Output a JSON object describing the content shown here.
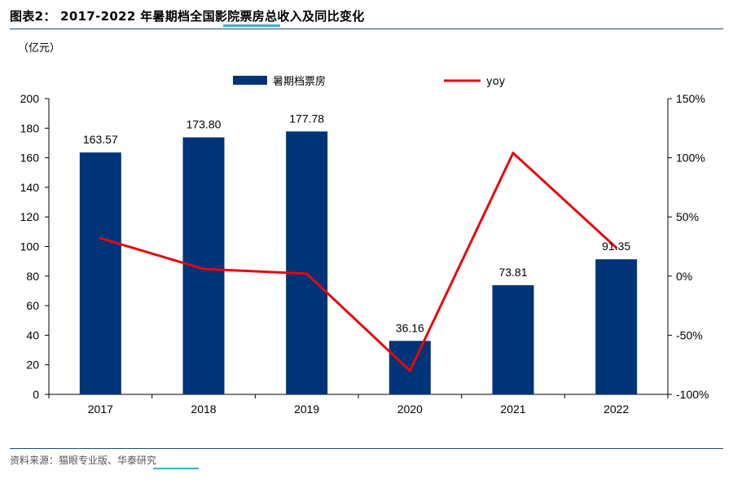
{
  "figure": {
    "title": "图表2： 2017-2022 年暑期档全国影院票房总收入及同比变化",
    "unit": "（亿元）",
    "source": "资料来源：猫眼专业版、华泰研究"
  },
  "colors": {
    "bar": "#003478",
    "line": "#e8070e",
    "rule": "#1f4e79",
    "accent": "#35b3c7"
  },
  "chart_data": {
    "type": "bar",
    "categories": [
      "2017",
      "2018",
      "2019",
      "2020",
      "2021",
      "2022"
    ],
    "series": [
      {
        "name": "暑期档票房",
        "type": "bar",
        "axis": "left",
        "values": [
          163.57,
          173.8,
          177.78,
          36.16,
          73.81,
          91.35
        ],
        "labels": [
          "163.57",
          "173.80",
          "177.78",
          "36.16",
          "73.81",
          "91.35"
        ]
      },
      {
        "name": "yoy",
        "type": "line",
        "axis": "right",
        "values": [
          32,
          6,
          2,
          -80,
          104,
          24
        ]
      }
    ],
    "y_left": {
      "range": [
        0,
        200
      ],
      "ticks": [
        "0",
        "20",
        "40",
        "60",
        "80",
        "100",
        "120",
        "140",
        "160",
        "180",
        "200"
      ]
    },
    "y_right": {
      "range": [
        -100,
        150
      ],
      "ticks": [
        "-100%",
        "-50%",
        "0%",
        "50%",
        "100%",
        "150%"
      ]
    },
    "grid": false,
    "legend": "top-center"
  }
}
